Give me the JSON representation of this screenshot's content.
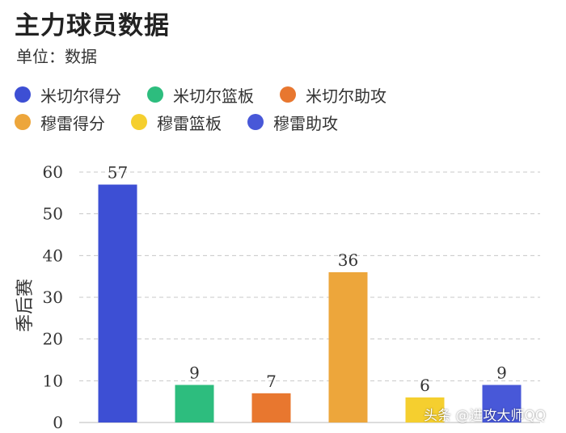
{
  "title": "主力球员数据",
  "subtitle": "单位：数据",
  "watermark": "头条 @进攻大师QQ",
  "legend": [
    [
      {
        "label": "米切尔得分",
        "color": "#3d4fd4"
      },
      {
        "label": "米切尔篮板",
        "color": "#2dbd7e"
      },
      {
        "label": "米切尔助攻",
        "color": "#e8772f"
      }
    ],
    [
      {
        "label": "穆雷得分",
        "color": "#eda63b"
      },
      {
        "label": "穆雷篮板",
        "color": "#f5cf2f"
      },
      {
        "label": "穆雷助攻",
        "color": "#4858d8"
      }
    ]
  ],
  "chart_data": {
    "type": "bar",
    "categories": [
      "米切尔得分",
      "米切尔篮板",
      "米切尔助攻",
      "穆雷得分",
      "穆雷篮板",
      "穆雷助攻"
    ],
    "values": [
      57,
      9,
      7,
      36,
      6,
      9
    ],
    "colors": [
      "#3d4fd4",
      "#2dbd7e",
      "#e8772f",
      "#eda63b",
      "#f5cf2f",
      "#4858d8"
    ],
    "ylabel": "季后赛",
    "ylim": [
      0,
      60
    ],
    "yticks": [
      0,
      10,
      20,
      30,
      40,
      50,
      60
    ],
    "grid": true,
    "data_labels": true,
    "legend_position": "top-left"
  }
}
